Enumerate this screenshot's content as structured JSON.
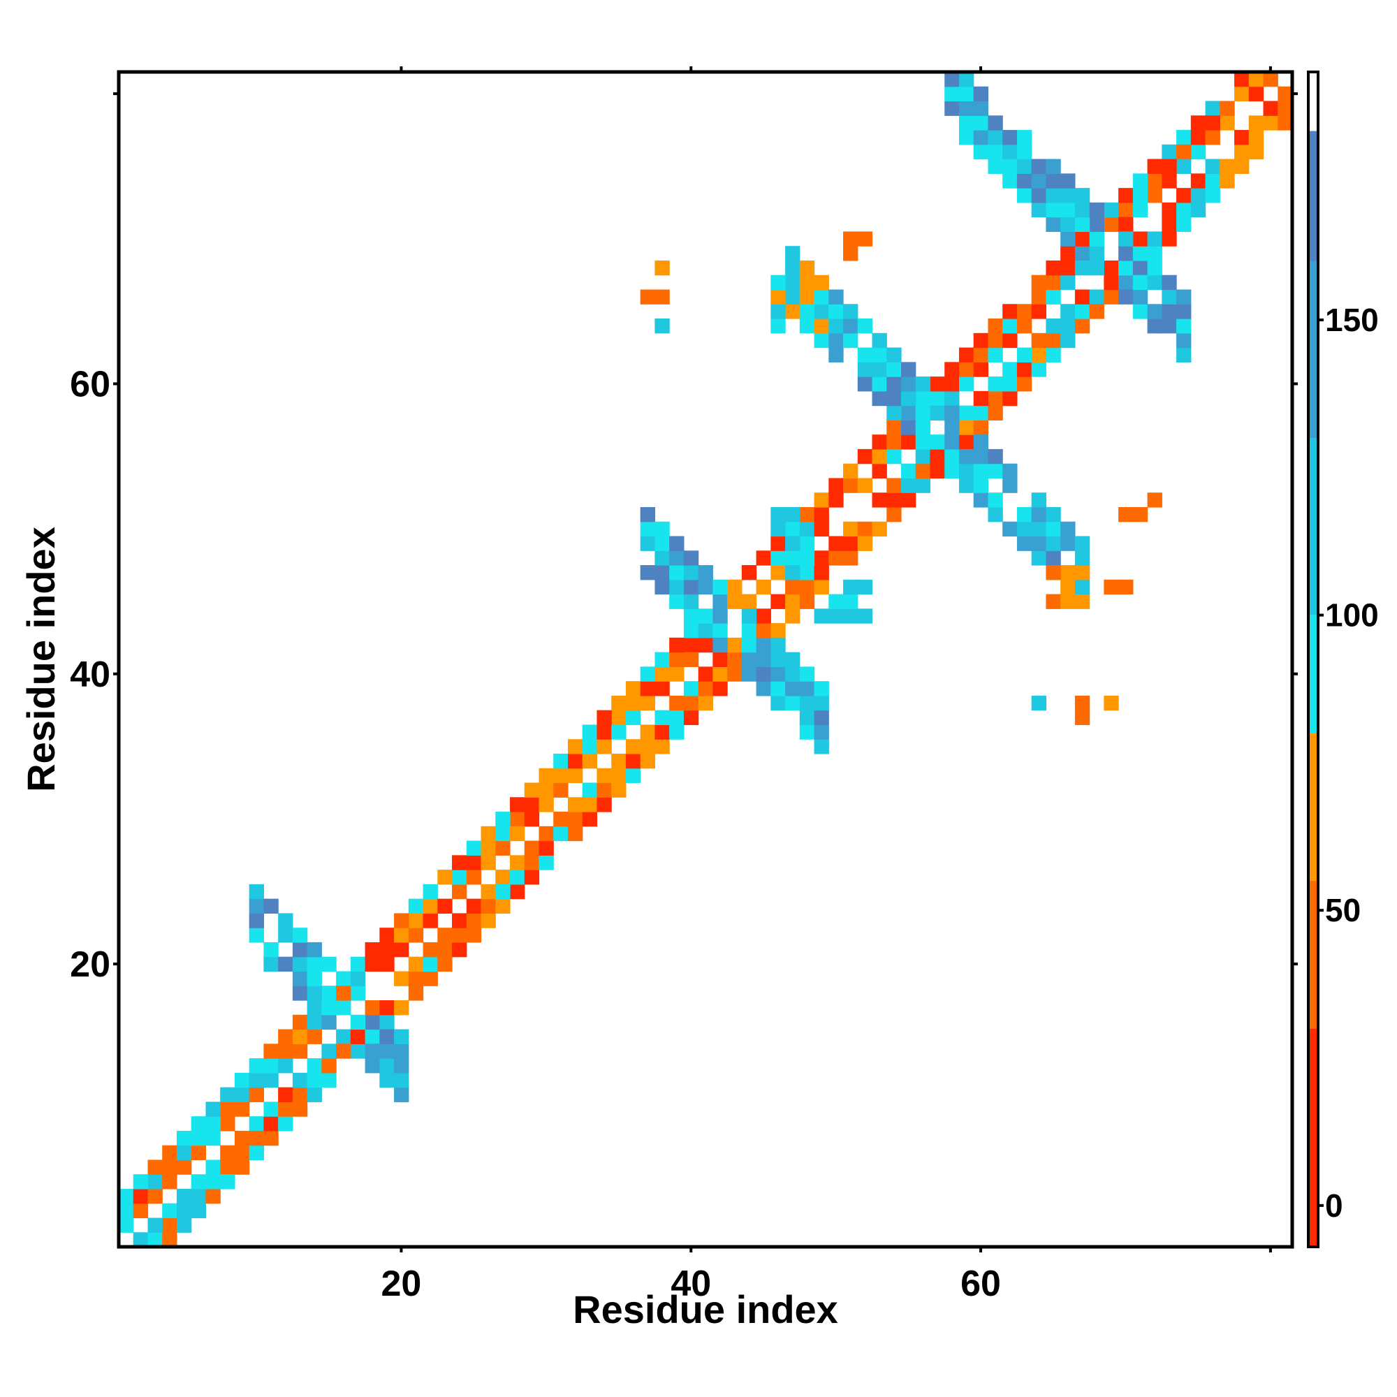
{
  "chart_data": {
    "type": "heatmap",
    "title": "",
    "xlabel": "Residue index",
    "ylabel": "Residue index",
    "x_ticks": [
      20,
      40,
      60
    ],
    "y_ticks": [
      20,
      40,
      60
    ],
    "xlim": [
      1,
      81
    ],
    "ylim": [
      1,
      81
    ],
    "colorbar": {
      "ticks": [
        0,
        50,
        100,
        150
      ],
      "range": [
        -7,
        192
      ],
      "stops": [
        {
          "from": -7,
          "to": 30,
          "color": "#ff2a00"
        },
        {
          "from": 30,
          "to": 55,
          "color": "#ff6a00"
        },
        {
          "from": 55,
          "to": 80,
          "color": "#ff9800"
        },
        {
          "from": 80,
          "to": 100,
          "color": "#18e4ee"
        },
        {
          "from": 100,
          "to": 130,
          "color": "#1fc7e0"
        },
        {
          "from": 130,
          "to": 160,
          "color": "#3aa0d2"
        },
        {
          "from": 160,
          "to": 182,
          "color": "#4f82c0"
        },
        {
          "from": 182,
          "to": 192,
          "color": "#ffffff"
        }
      ]
    },
    "colors": {
      "red": "#ff2a00",
      "orange": "#ff6a00",
      "amber": "#ff9800",
      "cyan": "#18e4ee",
      "sky": "#1fc7e0",
      "steel": "#3aa0d2",
      "slate": "#4f82c0"
    },
    "blocks": [
      {
        "type": "diag",
        "from": 1,
        "to": 81,
        "halfwidth": 3,
        "palette": [
          "red",
          "orange",
          "amber"
        ]
      },
      {
        "type": "diag",
        "from": 1,
        "to": 17,
        "halfwidth": 3,
        "palette": [
          "cyan",
          "sky",
          "orange"
        ]
      },
      {
        "type": "diag",
        "from": 20,
        "to": 40,
        "halfwidth": 3,
        "palette": [
          "orange",
          "amber",
          "cyan",
          "red"
        ]
      },
      {
        "type": "diag",
        "from": 54,
        "to": 76,
        "halfwidth": 3,
        "palette": [
          "cyan",
          "sky",
          "orange",
          "red"
        ]
      },
      {
        "type": "anti",
        "center": [
          16,
          17
        ],
        "lo": 10,
        "hi": 20,
        "halfwidth": 2,
        "palette": [
          "sky",
          "steel",
          "cyan",
          "slate"
        ]
      },
      {
        "type": "anti",
        "center": [
          43,
          43
        ],
        "lo": 37,
        "hi": 49,
        "halfwidth": 2,
        "palette": [
          "steel",
          "sky",
          "slate",
          "cyan"
        ]
      },
      {
        "type": "anti",
        "center": [
          57,
          57
        ],
        "lo": 47,
        "hi": 67,
        "halfwidth": 2,
        "palette": [
          "steel",
          "slate",
          "sky",
          "cyan"
        ]
      },
      {
        "type": "anti",
        "center": [
          69,
          69
        ],
        "lo": 58,
        "hi": 74,
        "halfwidth": 2,
        "palette": [
          "steel",
          "slate",
          "sky",
          "cyan"
        ]
      },
      {
        "type": "rect",
        "x": [
          46,
          48
        ],
        "y": [
          47,
          51
        ],
        "palette": [
          "cyan",
          "sky"
        ]
      },
      {
        "type": "rect",
        "x": [
          49,
          52
        ],
        "y": [
          44,
          46
        ],
        "palette": [
          "sky",
          "cyan"
        ]
      },
      {
        "type": "rect",
        "x": [
          46,
          49
        ],
        "y": [
          64,
          67
        ],
        "palette": [
          "sky",
          "cyan",
          "amber"
        ]
      },
      {
        "type": "rect",
        "x": [
          65,
          67
        ],
        "y": [
          45,
          47
        ],
        "palette": [
          "amber",
          "orange"
        ]
      },
      {
        "type": "cells",
        "color": "orange",
        "points": [
          [
            37,
            66
          ],
          [
            38,
            66
          ],
          [
            38,
            68
          ],
          [
            51,
            70
          ],
          [
            52,
            70
          ],
          [
            51,
            69
          ],
          [
            67,
            37
          ],
          [
            67,
            38
          ],
          [
            70,
            51
          ],
          [
            71,
            51
          ],
          [
            72,
            52
          ],
          [
            69,
            46
          ],
          [
            70,
            46
          ]
        ]
      },
      {
        "type": "cells",
        "color": "amber",
        "points": [
          [
            38,
            68
          ],
          [
            48,
            68
          ],
          [
            48,
            67
          ],
          [
            69,
            38
          ],
          [
            52,
            49
          ]
        ]
      },
      {
        "type": "cells",
        "color": "sky",
        "points": [
          [
            38,
            64
          ],
          [
            64,
            38
          ]
        ]
      }
    ]
  }
}
